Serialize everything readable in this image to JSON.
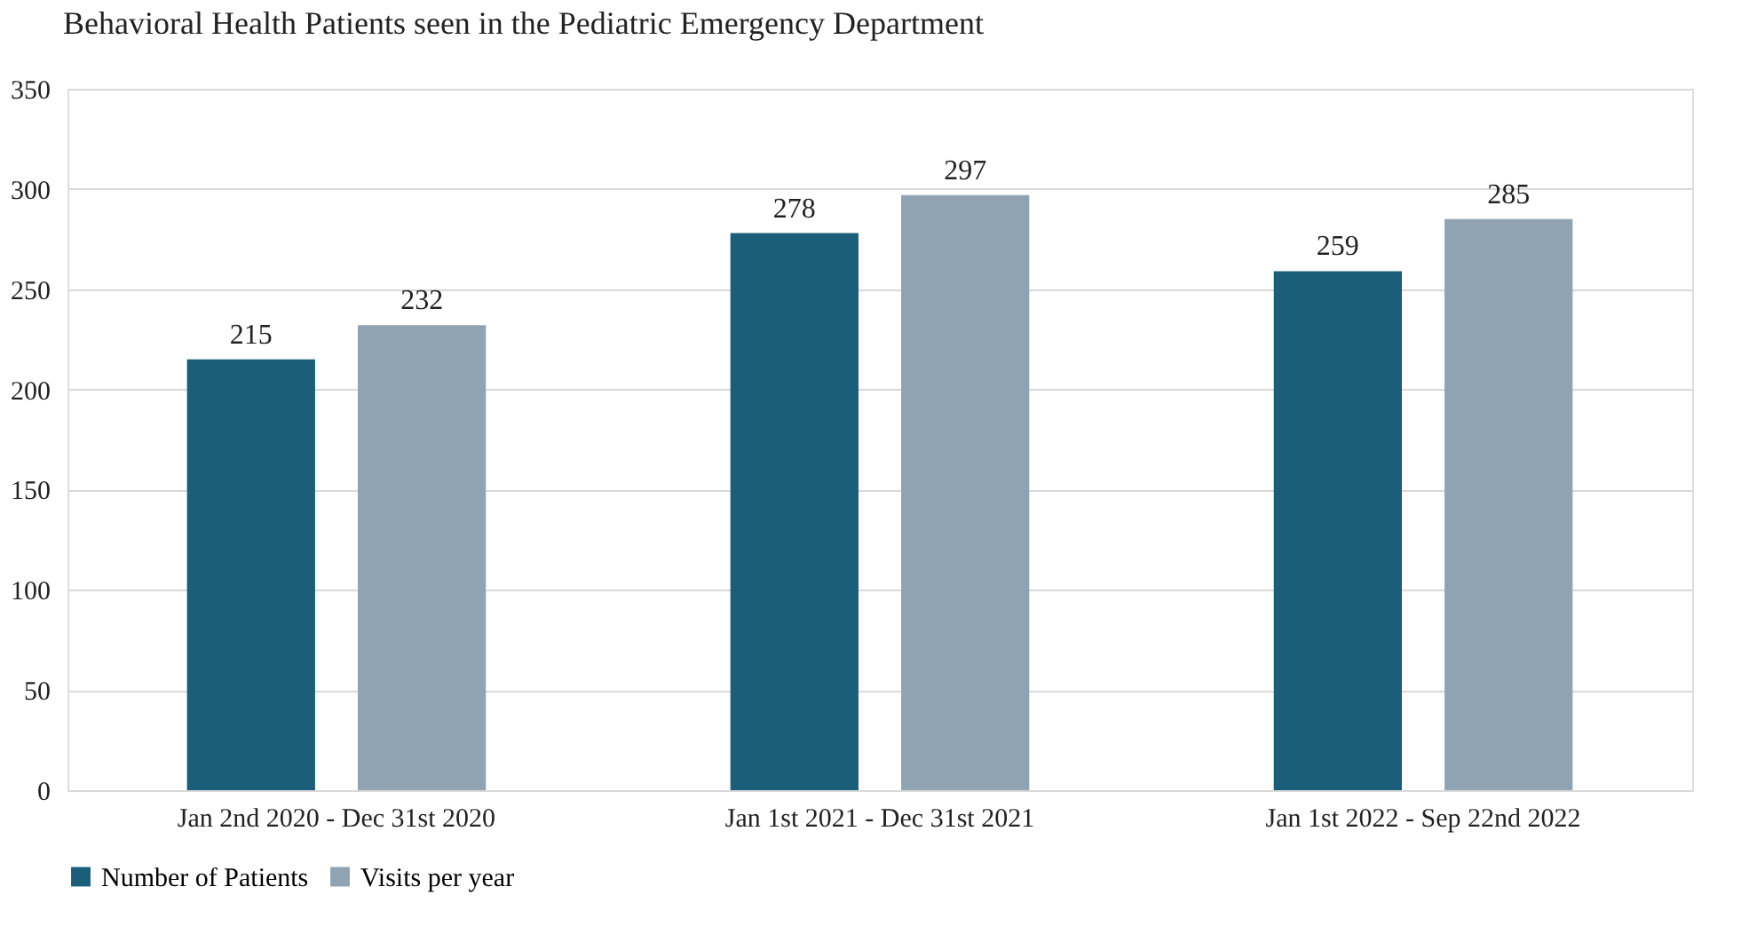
{
  "chart_data": {
    "type": "bar",
    "title": "Behavioral Health Patients seen in the Pediatric Emergency Department",
    "categories": [
      "Jan 2nd 2020 - Dec 31st 2020",
      "Jan 1st 2021 - Dec 31st 2021",
      "Jan 1st 2022 - Sep 22nd 2022"
    ],
    "series": [
      {
        "name": "Number of Patients",
        "color": "#1a5e7a",
        "values": [
          215,
          278,
          259
        ]
      },
      {
        "name": "Visits per year",
        "color": "#8fa3b3",
        "values": [
          232,
          297,
          285
        ]
      }
    ],
    "ylim": [
      0,
      350
    ],
    "yticks": [
      0,
      50,
      100,
      150,
      200,
      250,
      300,
      350
    ],
    "grid": "y",
    "legend": "bottom",
    "data_labels": true
  }
}
